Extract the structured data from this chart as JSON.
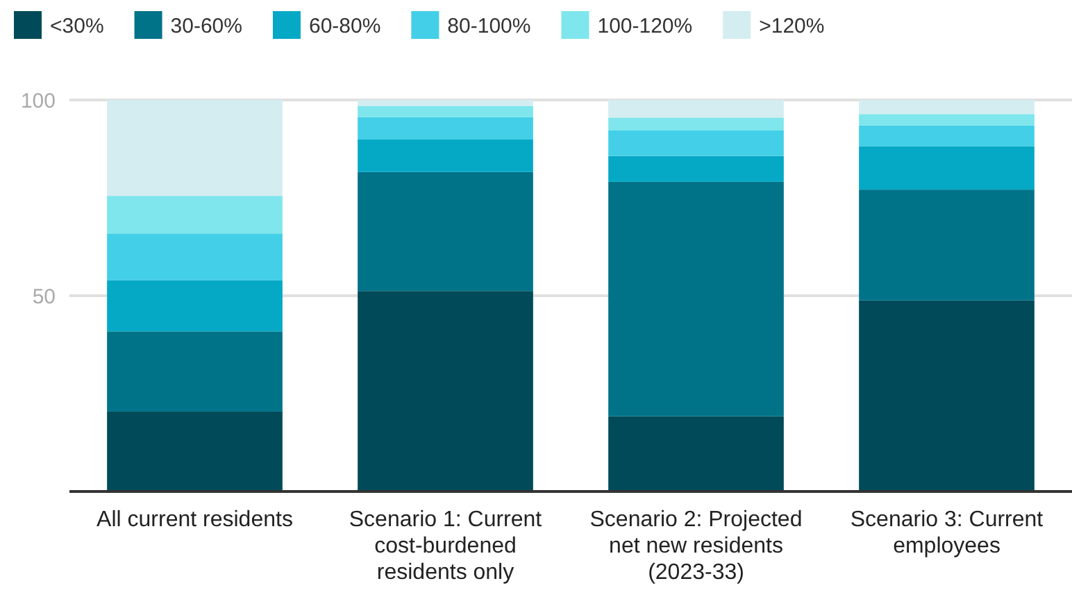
{
  "chart_data": {
    "type": "bar",
    "stacked": true,
    "categories": [
      "All current residents",
      "Scenario 1: Current cost-burdened residents only",
      "Scenario 2: Projected net new residents (2023-33)",
      "Scenario 3: Current employees"
    ],
    "series": [
      {
        "name": "<30%",
        "color": "#004a59",
        "values": [
          20.4,
          51.2,
          19.2,
          48.8
        ]
      },
      {
        "name": "30-60%",
        "color": "#007389",
        "values": [
          20.5,
          30.4,
          59.9,
          28.3
        ]
      },
      {
        "name": "60-80%",
        "color": "#05a9c6",
        "values": [
          13.1,
          8.3,
          6.6,
          11.1
        ]
      },
      {
        "name": "80-100%",
        "color": "#43cfe8",
        "values": [
          11.9,
          5.7,
          6.5,
          5.3
        ]
      },
      {
        "name": "100-120%",
        "color": "#7ee6ec",
        "values": [
          9.6,
          2.9,
          3.3,
          2.9
        ]
      },
      {
        "name": ">120%",
        "color": "#d4edf1",
        "values": [
          24.5,
          1.5,
          4.5,
          3.6
        ]
      }
    ],
    "ylim": [
      0,
      100
    ],
    "yticks": [
      50,
      100
    ],
    "grid": "y",
    "legend": "top"
  }
}
